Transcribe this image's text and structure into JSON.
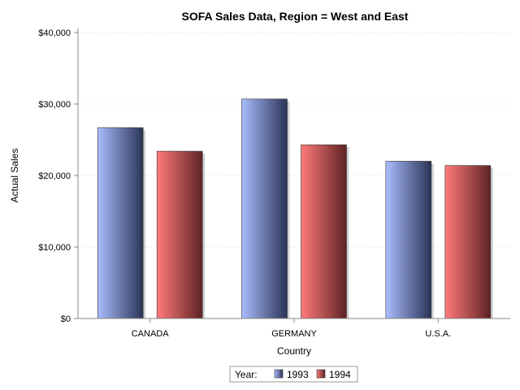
{
  "chart_data": {
    "type": "bar",
    "title": "SOFA Sales Data, Region = West and East",
    "xlabel": "Country",
    "ylabel": "Actual Sales",
    "categories": [
      "CANADA",
      "GERMANY",
      "U.S.A."
    ],
    "series": [
      {
        "name": "1993",
        "values": [
          26700,
          30700,
          22000
        ]
      },
      {
        "name": "1994",
        "values": [
          23400,
          24300,
          21400
        ]
      }
    ],
    "ylim": [
      0,
      40000
    ],
    "yticks": [
      0,
      10000,
      20000,
      30000,
      40000
    ],
    "ytick_labels": [
      "$0",
      "$10,000",
      "$20,000",
      "$30,000",
      "$40,000"
    ],
    "grid": true,
    "legend": {
      "title": "Year:",
      "placement": "bottom-center"
    },
    "colors": {
      "series_1993": [
        "#a9bdff",
        "#2b3455"
      ],
      "series_1994": [
        "#ff7a7a",
        "#5e2323"
      ],
      "axis": "#888888",
      "grid": "#e0e0e0"
    }
  }
}
